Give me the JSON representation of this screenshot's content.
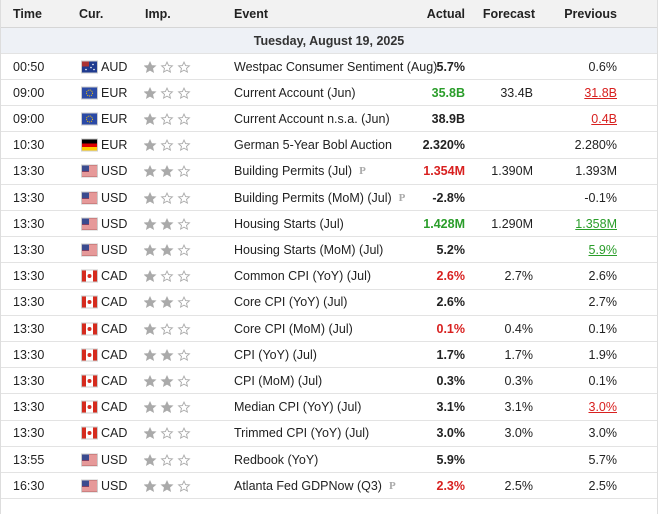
{
  "header": {
    "columns": [
      "Time",
      "Cur.",
      "Imp.",
      "Event",
      "Actual",
      "Forecast",
      "Previous"
    ]
  },
  "date": "Tuesday, August 19, 2025",
  "rows": [
    {
      "time": "00:50",
      "currency": "AUD",
      "flag": "au",
      "importance": 1,
      "event": "Westpac Consumer Sentiment (Aug)",
      "actual": "5.7%",
      "previous": "0.6%"
    },
    {
      "time": "09:00",
      "currency": "EUR",
      "flag": "eu",
      "importance": 1,
      "event": "Current Account (Jun)",
      "actual": "35.8B",
      "actual_trend": "up",
      "forecast": "33.4B",
      "previous": "31.8B",
      "previous_trend": "down"
    },
    {
      "time": "09:00",
      "currency": "EUR",
      "flag": "eu",
      "importance": 1,
      "event": "Current Account n.s.a. (Jun)",
      "actual": "38.9B",
      "previous": "0.4B",
      "previous_trend": "down"
    },
    {
      "time": "10:30",
      "currency": "EUR",
      "flag": "de",
      "importance": 1,
      "event": "German 5-Year Bobl Auction",
      "actual": "2.320%",
      "previous": "2.280%"
    },
    {
      "time": "13:30",
      "currency": "USD",
      "flag": "us",
      "importance": 2,
      "event": "Building Permits (Jul)",
      "preliminary": true,
      "actual": "1.354M",
      "actual_trend": "down",
      "forecast": "1.390M",
      "previous": "1.393M"
    },
    {
      "time": "13:30",
      "currency": "USD",
      "flag": "us",
      "importance": 1,
      "event": "Building Permits (MoM) (Jul)",
      "preliminary": true,
      "actual": "-2.8%",
      "previous": "-0.1%"
    },
    {
      "time": "13:30",
      "currency": "USD",
      "flag": "us",
      "importance": 2,
      "event": "Housing Starts (Jul)",
      "actual": "1.428M",
      "actual_trend": "up",
      "forecast": "1.290M",
      "previous": "1.358M",
      "previous_trend": "up"
    },
    {
      "time": "13:30",
      "currency": "USD",
      "flag": "us",
      "importance": 2,
      "event": "Housing Starts (MoM) (Jul)",
      "actual": "5.2%",
      "previous": "5.9%",
      "previous_trend": "up"
    },
    {
      "time": "13:30",
      "currency": "CAD",
      "flag": "ca",
      "importance": 1,
      "event": "Common CPI (YoY) (Jul)",
      "actual": "2.6%",
      "actual_trend": "down",
      "forecast": "2.7%",
      "previous": "2.6%"
    },
    {
      "time": "13:30",
      "currency": "CAD",
      "flag": "ca",
      "importance": 2,
      "event": "Core CPI (YoY) (Jul)",
      "actual": "2.6%",
      "previous": "2.7%"
    },
    {
      "time": "13:30",
      "currency": "CAD",
      "flag": "ca",
      "importance": 1,
      "event": "Core CPI (MoM) (Jul)",
      "actual": "0.1%",
      "actual_trend": "down",
      "forecast": "0.4%",
      "previous": "0.1%"
    },
    {
      "time": "13:30",
      "currency": "CAD",
      "flag": "ca",
      "importance": 2,
      "event": "CPI (YoY) (Jul)",
      "actual": "1.7%",
      "forecast": "1.7%",
      "previous": "1.9%"
    },
    {
      "time": "13:30",
      "currency": "CAD",
      "flag": "ca",
      "importance": 2,
      "event": "CPI (MoM) (Jul)",
      "actual": "0.3%",
      "forecast": "0.3%",
      "previous": "0.1%"
    },
    {
      "time": "13:30",
      "currency": "CAD",
      "flag": "ca",
      "importance": 2,
      "event": "Median CPI (YoY) (Jul)",
      "actual": "3.1%",
      "forecast": "3.1%",
      "previous": "3.0%",
      "previous_trend": "down"
    },
    {
      "time": "13:30",
      "currency": "CAD",
      "flag": "ca",
      "importance": 1,
      "event": "Trimmed CPI (YoY) (Jul)",
      "actual": "3.0%",
      "forecast": "3.0%",
      "previous": "3.0%"
    },
    {
      "time": "13:55",
      "currency": "USD",
      "flag": "us",
      "importance": 1,
      "event": "Redbook (YoY)",
      "actual": "5.9%",
      "previous": "5.7%"
    },
    {
      "time": "16:30",
      "currency": "USD",
      "flag": "us",
      "importance": 2,
      "event": "Atlanta Fed GDPNow (Q3)",
      "preliminary": true,
      "actual": "2.3%",
      "actual_trend": "down",
      "forecast": "2.5%",
      "previous": "2.5%"
    }
  ]
}
